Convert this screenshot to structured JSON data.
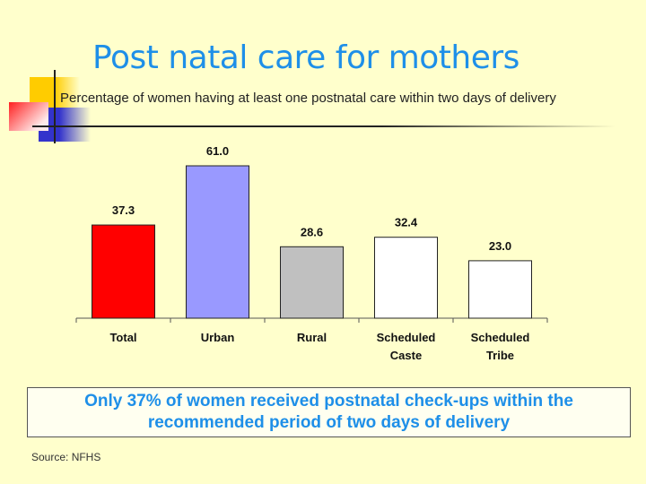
{
  "title": "Post natal care for mothers",
  "callout_line1": "Only 37% of women received postnatal check-ups within the",
  "callout_line2": "recommended period of two days of delivery",
  "source": "Source: NFHS",
  "chart_data": {
    "type": "bar",
    "title": "Percentage of women having at least one postnatal care within two days of delivery",
    "categories": [
      [
        "Total"
      ],
      [
        "Urban"
      ],
      [
        "Rural"
      ],
      [
        "Scheduled",
        "Caste"
      ],
      [
        "Scheduled",
        "Tribe"
      ]
    ],
    "values": [
      37.3,
      61.0,
      28.6,
      32.4,
      23.0
    ],
    "labels": [
      "37.3",
      "61.0",
      "28.6",
      "32.4",
      "23.0"
    ],
    "colors": [
      "#ff0000",
      "#9999ff",
      "#c0c0c0",
      "#ffffff",
      "#ffffff"
    ],
    "xlabel": "",
    "ylabel": "",
    "ylim": [
      0,
      61
    ],
    "grid": false
  }
}
